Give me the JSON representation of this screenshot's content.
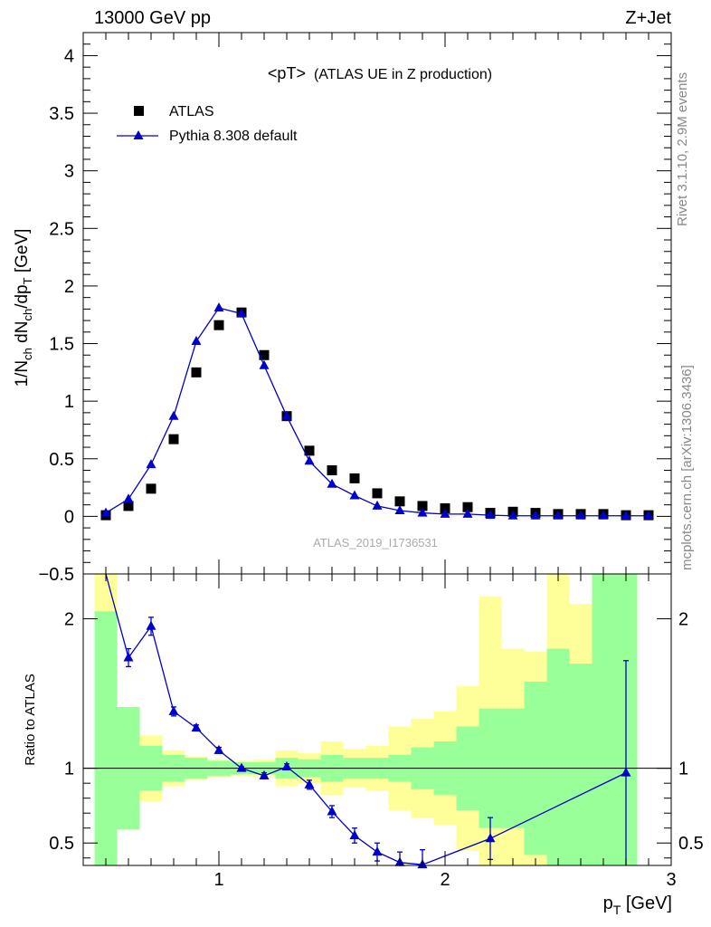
{
  "header": {
    "left": "13000 GeV pp",
    "right": "Z+Jet",
    "plot_title": "<pT>",
    "plot_subtitle": "(ATLAS UE in Z production)",
    "watermark": "ATLAS_2019_I1736531"
  },
  "side_labels": {
    "rivet": "Rivet 3.1.10,  2.9M events",
    "mcplots": "mcplots.cern.ch [arXiv:1306.3436]"
  },
  "axes": {
    "main_ylabel": "1/N_ch dN_ch/dp_T [GeV]",
    "ratio_ylabel": "Ratio to ATLAS",
    "xlabel": "p_T [GeV]"
  },
  "colors": {
    "data": "#000000",
    "mc": "#0000cc",
    "band_inner": "#99ff99",
    "band_outer": "#ffff99"
  },
  "chart_data": {
    "type": "scatter",
    "xlim": [
      0.4,
      3.0
    ],
    "xticks": [
      "1",
      "2",
      "3"
    ],
    "main": {
      "ylim": [
        -0.5,
        4.2
      ],
      "yticks": [
        "−0.5",
        "0",
        "0.5",
        "1",
        "1.5",
        "2",
        "2.5",
        "3",
        "3.5",
        "4"
      ],
      "series": [
        {
          "name": "ATLAS",
          "marker": "square",
          "x": [
            0.5,
            0.6,
            0.7,
            0.8,
            0.9,
            1.0,
            1.1,
            1.2,
            1.3,
            1.4,
            1.5,
            1.6,
            1.7,
            1.8,
            1.9,
            2.0,
            2.1,
            2.2,
            2.3,
            2.4,
            2.5,
            2.6,
            2.7,
            2.8,
            2.9
          ],
          "y": [
            0.01,
            0.09,
            0.24,
            0.67,
            1.25,
            1.66,
            1.77,
            1.4,
            0.87,
            0.57,
            0.4,
            0.33,
            0.2,
            0.13,
            0.09,
            0.07,
            0.08,
            0.03,
            0.04,
            0.03,
            0.02,
            0.02,
            0.02,
            0.01,
            0.01
          ]
        },
        {
          "name": "Pythia 8.308 default",
          "marker": "triangle",
          "x": [
            0.5,
            0.6,
            0.7,
            0.8,
            0.9,
            1.0,
            1.1,
            1.2,
            1.3,
            1.4,
            1.5,
            1.6,
            1.7,
            1.8,
            1.9,
            2.0,
            2.1,
            2.2,
            2.3,
            2.4,
            2.5,
            2.6,
            2.7,
            2.8,
            2.9
          ],
          "y": [
            0.03,
            0.15,
            0.45,
            0.87,
            1.52,
            1.81,
            1.76,
            1.31,
            0.87,
            0.48,
            0.28,
            0.18,
            0.09,
            0.05,
            0.03,
            0.02,
            0.02,
            0.01,
            0.005,
            0.005,
            0.005,
            0.005,
            0.005,
            0.005,
            0.005
          ]
        }
      ]
    },
    "ratio": {
      "ylim": [
        0.35,
        2.3
      ],
      "yticks": [
        "0.5",
        "1",
        "2"
      ],
      "bins": [
        {
          "x1": 0.45,
          "x2": 0.55,
          "inner": [
            0.35,
            2.05
          ],
          "outer": [
            0.35,
            2.3
          ]
        },
        {
          "x1": 0.55,
          "x2": 0.65,
          "inner": [
            0.59,
            1.41
          ],
          "outer": [
            0.59,
            1.41
          ]
        },
        {
          "x1": 0.65,
          "x2": 0.75,
          "inner": [
            0.85,
            1.15
          ],
          "outer": [
            0.78,
            1.22
          ]
        },
        {
          "x1": 0.75,
          "x2": 0.85,
          "inner": [
            0.91,
            1.09
          ],
          "outer": [
            0.88,
            1.12
          ]
        },
        {
          "x1": 0.85,
          "x2": 0.95,
          "inner": [
            0.93,
            1.07
          ],
          "outer": [
            0.92,
            1.08
          ]
        },
        {
          "x1": 0.95,
          "x2": 1.05,
          "inner": [
            0.95,
            1.05
          ],
          "outer": [
            0.94,
            1.06
          ]
        },
        {
          "x1": 1.05,
          "x2": 1.15,
          "inner": [
            0.96,
            1.04
          ],
          "outer": [
            0.95,
            1.05
          ]
        },
        {
          "x1": 1.15,
          "x2": 1.25,
          "inner": [
            0.96,
            1.04
          ],
          "outer": [
            0.94,
            1.06
          ]
        },
        {
          "x1": 1.25,
          "x2": 1.35,
          "inner": [
            0.93,
            1.07
          ],
          "outer": [
            0.88,
            1.12
          ]
        },
        {
          "x1": 1.35,
          "x2": 1.45,
          "inner": [
            0.94,
            1.06
          ],
          "outer": [
            0.9,
            1.1
          ]
        },
        {
          "x1": 1.45,
          "x2": 1.55,
          "inner": [
            0.91,
            1.09
          ],
          "outer": [
            0.82,
            1.18
          ]
        },
        {
          "x1": 1.55,
          "x2": 1.65,
          "inner": [
            0.93,
            1.07
          ],
          "outer": [
            0.87,
            1.13
          ]
        },
        {
          "x1": 1.65,
          "x2": 1.75,
          "inner": [
            0.93,
            1.07
          ],
          "outer": [
            0.85,
            1.15
          ]
        },
        {
          "x1": 1.75,
          "x2": 1.85,
          "inner": [
            0.91,
            1.09
          ],
          "outer": [
            0.72,
            1.28
          ]
        },
        {
          "x1": 1.85,
          "x2": 1.95,
          "inner": [
            0.86,
            1.14
          ],
          "outer": [
            0.67,
            1.33
          ]
        },
        {
          "x1": 1.95,
          "x2": 2.05,
          "inner": [
            0.82,
            1.18
          ],
          "outer": [
            0.62,
            1.38
          ]
        },
        {
          "x1": 2.05,
          "x2": 2.15,
          "inner": [
            0.72,
            1.28
          ],
          "outer": [
            0.45,
            1.55
          ]
        },
        {
          "x1": 2.15,
          "x2": 2.25,
          "inner": [
            0.6,
            1.4
          ],
          "outer": [
            0.35,
            2.15
          ]
        },
        {
          "x1": 2.25,
          "x2": 2.35,
          "inner": [
            0.6,
            1.4
          ],
          "outer": [
            0.35,
            1.8
          ]
        },
        {
          "x1": 2.35,
          "x2": 2.45,
          "inner": [
            0.42,
            1.58
          ],
          "outer": [
            0.35,
            1.78
          ]
        },
        {
          "x1": 2.45,
          "x2": 2.55,
          "inner": [
            0.35,
            1.8
          ],
          "outer": [
            0.35,
            2.3
          ]
        },
        {
          "x1": 2.55,
          "x2": 2.65,
          "inner": [
            0.35,
            1.7
          ],
          "outer": [
            0.35,
            2.1
          ]
        },
        {
          "x1": 2.65,
          "x2": 2.75,
          "inner": [
            0.35,
            2.3
          ],
          "outer": [
            0.35,
            2.3
          ]
        },
        {
          "x1": 2.75,
          "x2": 2.85,
          "inner": [
            0.35,
            2.3
          ],
          "outer": [
            0.35,
            2.3
          ]
        }
      ],
      "mc_ratio": {
        "x": [
          0.5,
          0.6,
          0.7,
          0.8,
          0.9,
          1.0,
          1.1,
          1.2,
          1.3,
          1.4,
          1.5,
          1.6,
          1.7,
          1.8,
          1.9,
          2.2,
          2.8
        ],
        "y": [
          2.6,
          1.74,
          1.95,
          1.38,
          1.27,
          1.12,
          1.0,
          0.95,
          1.01,
          0.89,
          0.71,
          0.55,
          0.44,
          0.37,
          0.355,
          0.53,
          0.97
        ],
        "err": [
          0.0,
          0.06,
          0.06,
          0.03,
          0.02,
          0.02,
          0.01,
          0.02,
          0.02,
          0.03,
          0.04,
          0.05,
          0.06,
          0.07,
          0.1,
          0.14,
          0.75
        ]
      }
    }
  }
}
